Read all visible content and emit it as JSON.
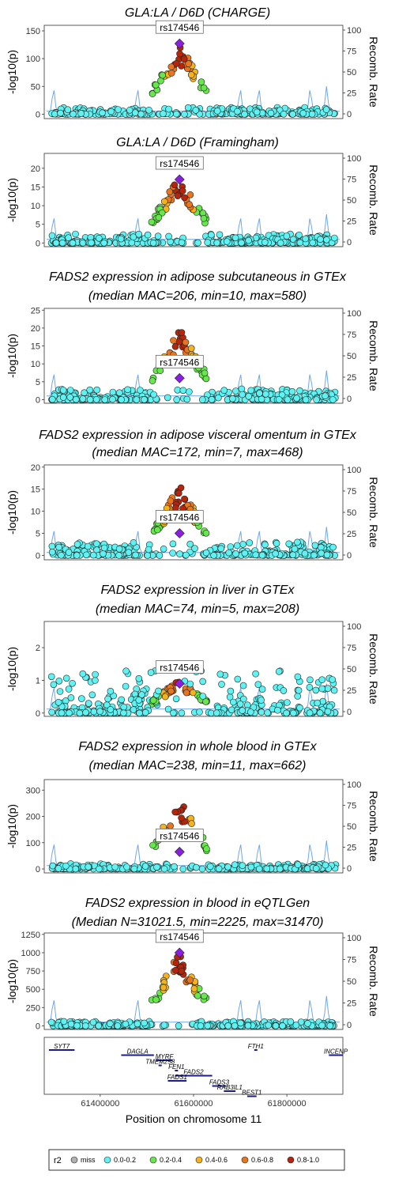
{
  "figure": {
    "xlabel": "Position on chromosome 11",
    "xticks": [
      61400000,
      61600000,
      61800000
    ],
    "xrange": [
      61280000,
      61920000
    ],
    "recomb_label": "Recomb. Rate",
    "recomb_ticks": [
      0,
      25,
      50,
      75,
      100
    ],
    "lead_snp": "rs174546",
    "lead_pos": 61570000
  },
  "legend": {
    "title": "r2",
    "items": [
      {
        "label": "miss",
        "color": "#b0b0b0"
      },
      {
        "label": "0.0-0.2",
        "color": "#5ef2f2"
      },
      {
        "label": "0.2-0.4",
        "color": "#66e84d"
      },
      {
        "label": "0.4-0.6",
        "color": "#f5b21a"
      },
      {
        "label": "0.6-0.8",
        "color": "#e9751d"
      },
      {
        "label": "0.8-1.0",
        "color": "#b5250b"
      }
    ]
  },
  "chart_data": [
    {
      "type": "scatter",
      "title": [
        "GLA:LA / D6D (CHARGE)"
      ],
      "ylabel": "-log10(p)",
      "ylim": [
        -8,
        160
      ],
      "yticks": [
        0,
        50,
        100,
        150
      ],
      "lead_y": 127,
      "peak": 127,
      "noise": 12
    },
    {
      "type": "scatter",
      "title": [
        "GLA:LA / D6D (Framingham)"
      ],
      "ylabel": "-log10(p)",
      "ylim": [
        -1,
        24
      ],
      "yticks": [
        0,
        5,
        10,
        15,
        20
      ],
      "lead_y": 17,
      "peak": 18,
      "noise": 2.5
    },
    {
      "type": "scatter",
      "title": [
        "FADS2 expression in adipose subcutaneous in GTEx",
        "(median MAC=206, min=10, max=580)"
      ],
      "ylabel": "-log10(p)",
      "ylim": [
        -1,
        25.5
      ],
      "yticks": [
        0,
        5,
        10,
        15,
        20,
        25
      ],
      "lead_y": 6,
      "peak": 20,
      "noise": 3
    },
    {
      "type": "scatter",
      "title": [
        "FADS2 expression in adipose visceral omentum in GTEx",
        "(median MAC=172, min=7, max=468)"
      ],
      "ylabel": "-log10(p)",
      "ylim": [
        -1,
        20.5
      ],
      "yticks": [
        0,
        5,
        10,
        15,
        20
      ],
      "lead_y": 5,
      "peak": 16,
      "noise": 3
    },
    {
      "type": "scatter",
      "title": [
        "FADS2 expression in liver in GTEx",
        "(median MAC=74, min=5, max=208)"
      ],
      "ylabel": "-log10(p)",
      "ylim": [
        -0.1,
        2.8
      ],
      "yticks": [
        0,
        1,
        2
      ],
      "lead_y": 0.9,
      "peak": 1.05,
      "noise": 1.3
    },
    {
      "type": "scatter",
      "title": [
        "FADS2 expression in whole blood in GTEx",
        "(median MAC=238, min=11, max=662)"
      ],
      "ylabel": "-log10(p)",
      "ylim": [
        -15,
        340
      ],
      "yticks": [
        0,
        100,
        200,
        300
      ],
      "lead_y": 65,
      "peak": 265,
      "noise": 20
    },
    {
      "type": "scatter",
      "title": [
        "FADS2 expression in blood in eQTLGen",
        "(Median N=31021.5, min=2225, max=31470)"
      ],
      "ylabel": "-log10(p)",
      "ylim": [
        -50,
        1270
      ],
      "yticks": [
        0,
        250,
        500,
        750,
        1000,
        1250
      ],
      "lead_y": 1000,
      "peak": 1000,
      "noise": 60
    }
  ],
  "genes": [
    {
      "name": "SYT7",
      "start": 61290000,
      "end": 61345000,
      "lane": 0
    },
    {
      "name": "DAGLA",
      "start": 61445000,
      "end": 61515000,
      "lane": 1
    },
    {
      "name": "MYRF",
      "start": 61520000,
      "end": 61555000,
      "lane": 2
    },
    {
      "name": "TMEM258",
      "start": 61525000,
      "end": 61530000,
      "lane": 3
    },
    {
      "name": "FEN1",
      "start": 61560000,
      "end": 61564000,
      "lane": 4
    },
    {
      "name": "FADS2",
      "start": 61560000,
      "end": 61640000,
      "lane": 5
    },
    {
      "name": "FADS1",
      "start": 61545000,
      "end": 61585000,
      "lane": 6
    },
    {
      "name": "FADS3",
      "start": 61640000,
      "end": 61670000,
      "lane": 7
    },
    {
      "name": "RAB3IL1",
      "start": 61665000,
      "end": 61690000,
      "lane": 8
    },
    {
      "name": "BEST1",
      "start": 61715000,
      "end": 61735000,
      "lane": 9
    },
    {
      "name": "FTH1",
      "start": 61730000,
      "end": 61735000,
      "lane": 0
    },
    {
      "name": "INCENP",
      "start": 61890000,
      "end": 61920000,
      "lane": 1
    }
  ]
}
